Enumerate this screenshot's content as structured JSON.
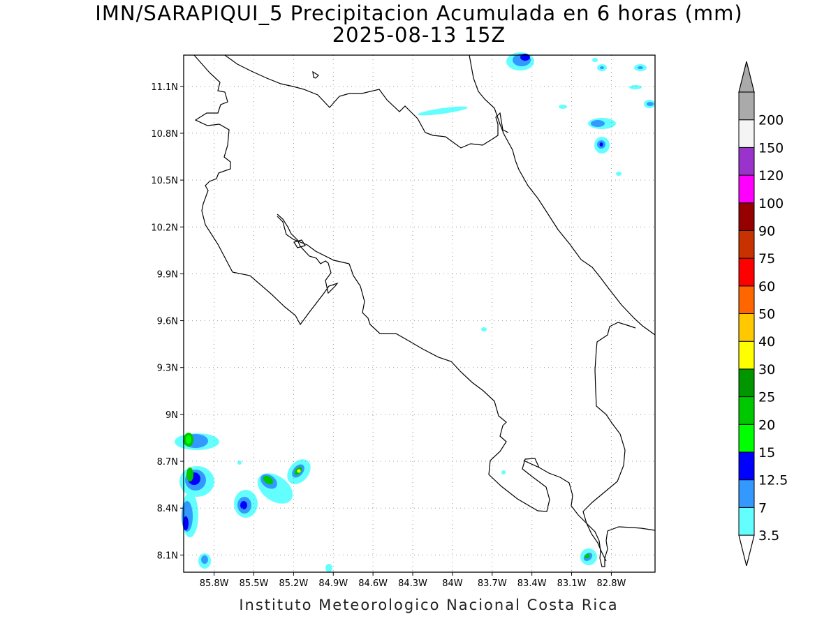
{
  "title_line1": "IMN/SARAPIQUI_5 Precipitacion Acumulada en 6 horas (mm)",
  "title_line2": "2025-08-13 15Z",
  "footer": "Instituto Meteorologico Nacional Costa Rica",
  "map": {
    "lon_range": [
      -86.03,
      -82.47
    ],
    "lat_range": [
      7.99,
      11.3
    ],
    "lon_ticks": [
      {
        "value": -85.8,
        "label": "85.8W"
      },
      {
        "value": -85.5,
        "label": "85.5W"
      },
      {
        "value": -85.2,
        "label": "85.2W"
      },
      {
        "value": -84.9,
        "label": "84.9W"
      },
      {
        "value": -84.6,
        "label": "84.6W"
      },
      {
        "value": -84.3,
        "label": "84.3W"
      },
      {
        "value": -84.0,
        "label": "84W"
      },
      {
        "value": -83.7,
        "label": "83.7W"
      },
      {
        "value": -83.4,
        "label": "83.4W"
      },
      {
        "value": -83.1,
        "label": "83.1W"
      },
      {
        "value": -82.8,
        "label": "82.8W"
      }
    ],
    "lat_ticks": [
      {
        "value": 8.1,
        "label": "8.1N"
      },
      {
        "value": 8.4,
        "label": "8.4N"
      },
      {
        "value": 8.7,
        "label": "8.7N"
      },
      {
        "value": 9.0,
        "label": "9N"
      },
      {
        "value": 9.3,
        "label": "9.3N"
      },
      {
        "value": 9.6,
        "label": "9.6N"
      },
      {
        "value": 9.9,
        "label": "9.9N"
      },
      {
        "value": 10.2,
        "label": "10.2N"
      },
      {
        "value": 10.5,
        "label": "10.5N"
      },
      {
        "value": 10.8,
        "label": "10.8N"
      },
      {
        "value": 11.1,
        "label": "11.1N"
      }
    ],
    "grid": true
  },
  "colorbar": {
    "labels": [
      "3.5",
      "7",
      "12.5",
      "15",
      "20",
      "25",
      "30",
      "40",
      "50",
      "60",
      "75",
      "90",
      "100",
      "120",
      "150",
      "200"
    ],
    "colors": [
      "#63ffff",
      "#3399ff",
      "#0000ff",
      "#00ff00",
      "#00c800",
      "#009600",
      "#ffff00",
      "#ffc800",
      "#ff6600",
      "#ff0000",
      "#c83200",
      "#960000",
      "#ff00ff",
      "#9933cc",
      "#f4f4f4",
      "#aaaaaa"
    ],
    "under_color": "#ffffff",
    "over_color": "#aaaaaa"
  }
}
